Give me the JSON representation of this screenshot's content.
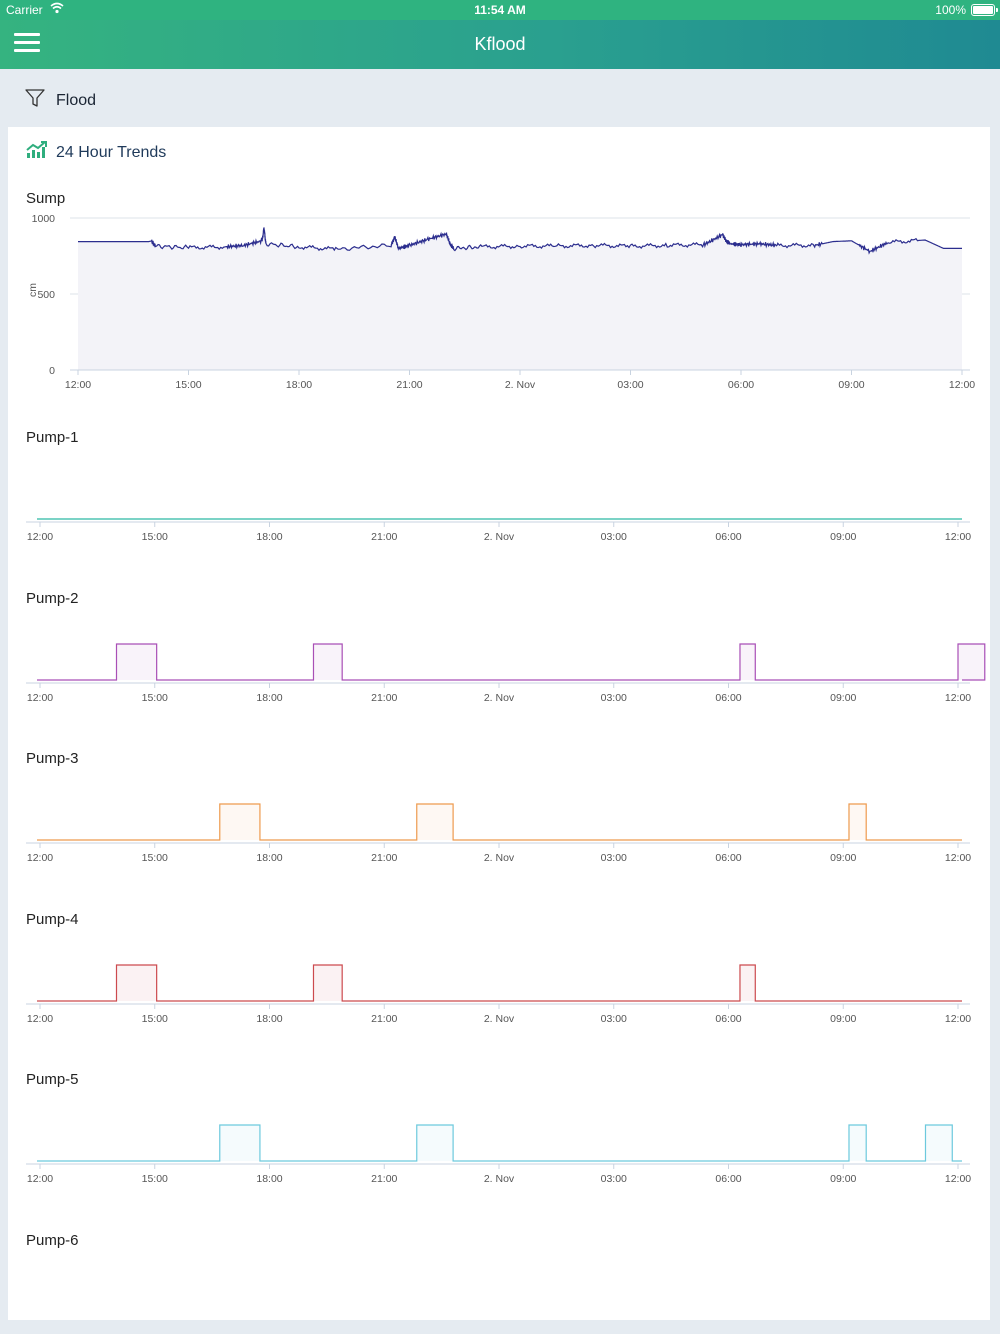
{
  "status_bar": {
    "carrier": "Carrier",
    "time": "11:54 AM",
    "battery": "100%"
  },
  "nav": {
    "title": "Kflood"
  },
  "filter": {
    "label": "Flood"
  },
  "card": {
    "title": "24 Hour Trends"
  },
  "colors": {
    "nav_start": "#35b380",
    "nav_end": "#1f8a92",
    "sump": "#2b2d8e",
    "pump1": "#2cb9a5",
    "pump2": "#a94fb6",
    "pump3": "#ee9a4e",
    "pump4": "#cc4a4e",
    "pump5": "#6cc9dd",
    "pump6": "#2cb9a5"
  },
  "chart_data": [
    {
      "type": "area",
      "title": "Sump",
      "ylabel": "cm",
      "ylim": [
        0,
        1000
      ],
      "yticks": [
        "1000",
        "500",
        "0"
      ],
      "xticks": [
        "12:00",
        "15:00",
        "18:00",
        "21:00",
        "2. Nov",
        "03:00",
        "06:00",
        "09:00",
        "12:00"
      ],
      "x_hours": [
        0,
        2,
        2.1,
        3,
        4,
        4.5,
        5,
        5.05,
        5.1,
        6,
        7,
        8.5,
        8.6,
        8.7,
        9,
        9.5,
        10,
        10.1,
        10.2,
        11,
        12,
        13,
        14,
        15,
        16,
        17,
        17.5,
        17.6,
        17.7,
        18,
        18.5,
        19,
        20,
        20.5,
        21,
        21.5,
        22,
        23,
        23.5,
        24
      ],
      "y": [
        845,
        845,
        815,
        805,
        810,
        820,
        850,
        935,
        830,
        810,
        795,
        820,
        875,
        800,
        820,
        860,
        895,
        830,
        800,
        810,
        815,
        815,
        820,
        815,
        820,
        825,
        890,
        850,
        830,
        825,
        830,
        820,
        820,
        845,
        850,
        780,
        840,
        855,
        800,
        800
      ]
    },
    {
      "type": "line",
      "title": "Pump-1",
      "xticks": [
        "12:00",
        "15:00",
        "18:00",
        "21:00",
        "2. Nov",
        "03:00",
        "06:00",
        "09:00",
        "12:00"
      ],
      "on_intervals": []
    },
    {
      "type": "area",
      "title": "Pump-2",
      "xticks": [
        "12:00",
        "15:00",
        "18:00",
        "21:00",
        "2. Nov",
        "03:00",
        "06:00",
        "09:00",
        "12:00"
      ],
      "on_intervals": [
        [
          2.0,
          3.05
        ],
        [
          7.15,
          7.9
        ],
        [
          18.3,
          18.7
        ],
        [
          24.0,
          24.7
        ]
      ]
    },
    {
      "type": "area",
      "title": "Pump-3",
      "xticks": [
        "12:00",
        "15:00",
        "18:00",
        "21:00",
        "2. Nov",
        "03:00",
        "06:00",
        "09:00",
        "12:00"
      ],
      "on_intervals": [
        [
          4.7,
          5.75
        ],
        [
          9.85,
          10.8
        ],
        [
          21.15,
          21.6
        ]
      ]
    },
    {
      "type": "area",
      "title": "Pump-4",
      "xticks": [
        "12:00",
        "15:00",
        "18:00",
        "21:00",
        "2. Nov",
        "03:00",
        "06:00",
        "09:00",
        "12:00"
      ],
      "on_intervals": [
        [
          2.0,
          3.05
        ],
        [
          7.15,
          7.9
        ],
        [
          18.3,
          18.7
        ]
      ]
    },
    {
      "type": "area",
      "title": "Pump-5",
      "xticks": [
        "12:00",
        "15:00",
        "18:00",
        "21:00",
        "2. Nov",
        "03:00",
        "06:00",
        "09:00",
        "12:00"
      ],
      "on_intervals": [
        [
          4.7,
          5.75
        ],
        [
          9.85,
          10.8
        ],
        [
          21.15,
          21.6
        ],
        [
          23.15,
          23.85
        ]
      ]
    },
    {
      "type": "line",
      "title": "Pump-6",
      "xticks": [],
      "on_intervals": []
    }
  ]
}
